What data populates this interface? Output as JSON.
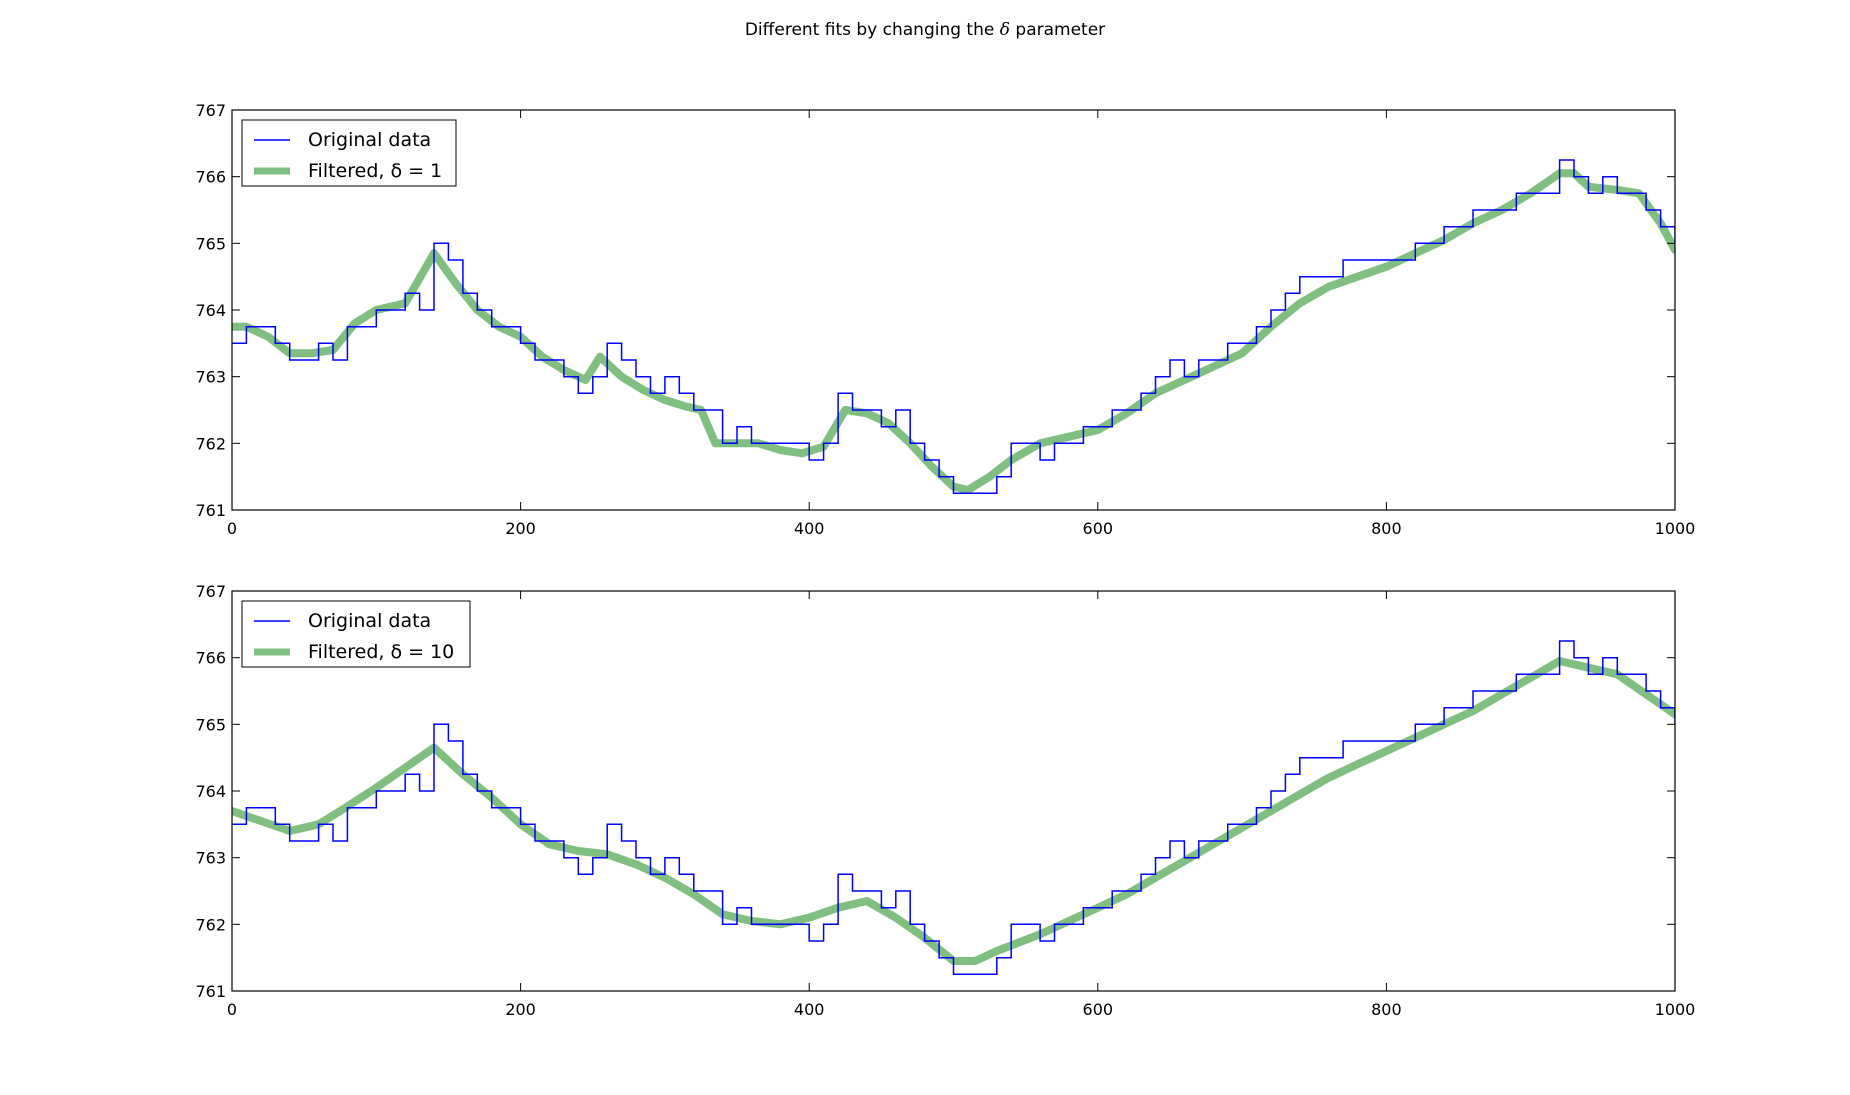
{
  "figure": {
    "title_pre": "Different fits by changing the ",
    "title_symbol": "δ",
    "title_post": " parameter"
  },
  "chart_data": [
    {
      "type": "line",
      "title": "",
      "xlabel": "",
      "ylabel": "",
      "xlim": [
        0,
        1000
      ],
      "ylim": [
        761,
        767
      ],
      "xticks": [
        0,
        200,
        400,
        600,
        800,
        1000
      ],
      "yticks": [
        761,
        762,
        763,
        764,
        765,
        766,
        767
      ],
      "legend_position": "top-left",
      "series": [
        {
          "name": "Original data",
          "color": "#0000ff",
          "style": "thin-step",
          "x": [
            0,
            10,
            20,
            30,
            40,
            50,
            60,
            70,
            80,
            100,
            120,
            130,
            140,
            150,
            160,
            170,
            180,
            190,
            200,
            210,
            220,
            230,
            240,
            250,
            260,
            270,
            280,
            290,
            300,
            310,
            320,
            330,
            340,
            350,
            360,
            370,
            380,
            390,
            400,
            410,
            420,
            430,
            440,
            450,
            460,
            470,
            480,
            490,
            500,
            510,
            520,
            530,
            540,
            550,
            560,
            570,
            580,
            590,
            600,
            610,
            620,
            630,
            640,
            650,
            660,
            670,
            680,
            690,
            700,
            710,
            720,
            730,
            740,
            750,
            760,
            770,
            780,
            790,
            800,
            810,
            820,
            830,
            840,
            850,
            860,
            870,
            880,
            890,
            900,
            910,
            920,
            930,
            940,
            950,
            960,
            970,
            980,
            990,
            1000
          ],
          "y": [
            763.5,
            763.75,
            763.75,
            763.5,
            763.25,
            763.25,
            763.5,
            763.25,
            763.75,
            764.0,
            764.25,
            764.0,
            765.0,
            764.75,
            764.25,
            764.0,
            763.75,
            763.75,
            763.5,
            763.25,
            763.25,
            763.0,
            762.75,
            763.0,
            763.5,
            763.25,
            763.0,
            762.75,
            763.0,
            762.75,
            762.5,
            762.5,
            762.0,
            762.25,
            762.0,
            762.0,
            762.0,
            762.0,
            761.75,
            762.0,
            762.75,
            762.5,
            762.5,
            762.25,
            762.5,
            762.0,
            761.75,
            761.5,
            761.25,
            761.25,
            761.25,
            761.5,
            762.0,
            762.0,
            761.75,
            762.0,
            762.0,
            762.25,
            762.25,
            762.5,
            762.5,
            762.75,
            763.0,
            763.25,
            763.0,
            763.25,
            763.25,
            763.5,
            763.5,
            763.75,
            764.0,
            764.25,
            764.5,
            764.5,
            764.5,
            764.75,
            764.75,
            764.75,
            764.75,
            764.75,
            765.0,
            765.0,
            765.25,
            765.25,
            765.5,
            765.5,
            765.5,
            765.75,
            765.75,
            765.75,
            766.25,
            766.0,
            765.75,
            766.0,
            765.75,
            765.75,
            765.5,
            765.25,
            765.0
          ]
        },
        {
          "name": "Filtered, δ = 1",
          "color": "#7fbf7f",
          "style": "thick",
          "x": [
            0,
            10,
            25,
            40,
            55,
            70,
            85,
            100,
            120,
            140,
            155,
            170,
            185,
            200,
            215,
            230,
            245,
            255,
            270,
            285,
            300,
            315,
            325,
            335,
            350,
            365,
            380,
            395,
            410,
            425,
            440,
            455,
            470,
            485,
            500,
            510,
            525,
            540,
            560,
            580,
            600,
            620,
            640,
            660,
            680,
            700,
            720,
            740,
            760,
            780,
            800,
            820,
            840,
            860,
            880,
            900,
            920,
            930,
            940,
            960,
            975,
            990,
            1000
          ],
          "y": [
            763.75,
            763.75,
            763.6,
            763.35,
            763.35,
            763.4,
            763.8,
            764.0,
            764.1,
            764.85,
            764.4,
            764.0,
            763.75,
            763.6,
            763.3,
            763.1,
            762.95,
            763.3,
            763.0,
            762.8,
            762.65,
            762.55,
            762.5,
            762.0,
            762.0,
            762.0,
            761.9,
            761.85,
            761.95,
            762.5,
            762.45,
            762.3,
            762.0,
            761.65,
            761.35,
            761.3,
            761.5,
            761.75,
            762.0,
            762.1,
            762.2,
            762.45,
            762.75,
            762.95,
            763.15,
            763.35,
            763.75,
            764.1,
            764.35,
            764.5,
            764.65,
            764.85,
            765.05,
            765.3,
            765.5,
            765.75,
            766.05,
            766.05,
            765.85,
            765.8,
            765.75,
            765.3,
            764.9
          ]
        }
      ]
    },
    {
      "type": "line",
      "title": "",
      "xlabel": "",
      "ylabel": "",
      "xlim": [
        0,
        1000
      ],
      "ylim": [
        761,
        767
      ],
      "xticks": [
        0,
        200,
        400,
        600,
        800,
        1000
      ],
      "yticks": [
        761,
        762,
        763,
        764,
        765,
        766,
        767
      ],
      "legend_position": "top-left",
      "series": [
        {
          "name": "Original data",
          "color": "#0000ff",
          "style": "thin-step",
          "x": [
            0,
            10,
            20,
            30,
            40,
            50,
            60,
            70,
            80,
            100,
            120,
            130,
            140,
            150,
            160,
            170,
            180,
            190,
            200,
            210,
            220,
            230,
            240,
            250,
            260,
            270,
            280,
            290,
            300,
            310,
            320,
            330,
            340,
            350,
            360,
            370,
            380,
            390,
            400,
            410,
            420,
            430,
            440,
            450,
            460,
            470,
            480,
            490,
            500,
            510,
            520,
            530,
            540,
            550,
            560,
            570,
            580,
            590,
            600,
            610,
            620,
            630,
            640,
            650,
            660,
            670,
            680,
            690,
            700,
            710,
            720,
            730,
            740,
            750,
            760,
            770,
            780,
            790,
            800,
            810,
            820,
            830,
            840,
            850,
            860,
            870,
            880,
            890,
            900,
            910,
            920,
            930,
            940,
            950,
            960,
            970,
            980,
            990,
            1000
          ],
          "y": [
            763.5,
            763.75,
            763.75,
            763.5,
            763.25,
            763.25,
            763.5,
            763.25,
            763.75,
            764.0,
            764.25,
            764.0,
            765.0,
            764.75,
            764.25,
            764.0,
            763.75,
            763.75,
            763.5,
            763.25,
            763.25,
            763.0,
            762.75,
            763.0,
            763.5,
            763.25,
            763.0,
            762.75,
            763.0,
            762.75,
            762.5,
            762.5,
            762.0,
            762.25,
            762.0,
            762.0,
            762.0,
            762.0,
            761.75,
            762.0,
            762.75,
            762.5,
            762.5,
            762.25,
            762.5,
            762.0,
            761.75,
            761.5,
            761.25,
            761.25,
            761.25,
            761.5,
            762.0,
            762.0,
            761.75,
            762.0,
            762.0,
            762.25,
            762.25,
            762.5,
            762.5,
            762.75,
            763.0,
            763.25,
            763.0,
            763.25,
            763.25,
            763.5,
            763.5,
            763.75,
            764.0,
            764.25,
            764.5,
            764.5,
            764.5,
            764.75,
            764.75,
            764.75,
            764.75,
            764.75,
            765.0,
            765.0,
            765.25,
            765.25,
            765.5,
            765.5,
            765.5,
            765.75,
            765.75,
            765.75,
            766.25,
            766.0,
            765.75,
            766.0,
            765.75,
            765.75,
            765.5,
            765.25,
            765.0
          ]
        },
        {
          "name": "Filtered, δ = 10",
          "color": "#7fbf7f",
          "style": "thick",
          "x": [
            0,
            20,
            40,
            60,
            75,
            100,
            120,
            140,
            160,
            180,
            200,
            220,
            240,
            260,
            280,
            300,
            320,
            340,
            360,
            380,
            400,
            420,
            440,
            460,
            480,
            500,
            515,
            530,
            560,
            580,
            600,
            620,
            640,
            660,
            680,
            700,
            720,
            740,
            760,
            780,
            800,
            820,
            840,
            860,
            880,
            900,
            920,
            940,
            960,
            980,
            1000
          ],
          "y": [
            763.7,
            763.55,
            763.4,
            763.5,
            763.7,
            764.05,
            764.35,
            764.65,
            764.25,
            763.9,
            763.5,
            763.2,
            763.1,
            763.05,
            762.9,
            762.7,
            762.45,
            762.15,
            762.05,
            762.0,
            762.1,
            762.25,
            762.35,
            762.1,
            761.8,
            761.45,
            761.45,
            761.6,
            761.85,
            762.05,
            762.25,
            762.45,
            762.7,
            762.95,
            763.2,
            763.45,
            763.7,
            763.95,
            764.2,
            764.4,
            764.6,
            764.8,
            765.0,
            765.2,
            765.45,
            765.7,
            765.95,
            765.85,
            765.75,
            765.45,
            765.15
          ]
        }
      ]
    }
  ]
}
